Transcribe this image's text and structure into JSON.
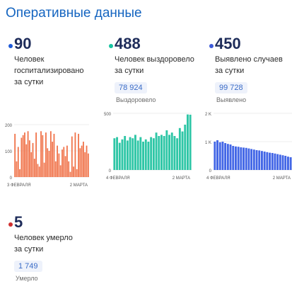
{
  "page_title": "Оперативные данные",
  "cards": [
    {
      "number": "90",
      "desc_lines": [
        "Человек",
        "госпитализировано",
        "за сутки"
      ],
      "dot_color": "#1e5ad8",
      "bar_color": "#f0734a",
      "chart": {
        "type": "bar",
        "x_start_label": "3 ФЕВРАЛЯ",
        "x_end_label": "2 МАРТА",
        "y_ticks": [
          "0",
          "100",
          "200"
        ],
        "ylim": [
          0,
          200
        ],
        "values": [
          165,
          60,
          115,
          30,
          150,
          160,
          170,
          125,
          175,
          140,
          95,
          130,
          70,
          170,
          50,
          40,
          175,
          160,
          55,
          170,
          110,
          100,
          175,
          135,
          165,
          60,
          120,
          90,
          45,
          105,
          115,
          80,
          120,
          60,
          20,
          155,
          40,
          170,
          30,
          165,
          110,
          120,
          135,
          95,
          120,
          90
        ]
      }
    },
    {
      "number": "488",
      "desc_lines": [
        "Человек выздоровело",
        "за сутки"
      ],
      "total": "78 924",
      "total_label": "Выздоровело",
      "dot_color": "#16c3a0",
      "bar_color": "#2ec6a6",
      "chart": {
        "type": "bar",
        "x_start_label": "4 ФЕВРАЛЯ",
        "x_end_label": "2 МАРТА",
        "y_ticks": [
          "0",
          "500"
        ],
        "ylim": [
          0,
          500
        ],
        "values": [
          280,
          290,
          240,
          270,
          300,
          260,
          290,
          280,
          310,
          260,
          290,
          250,
          270,
          250,
          290,
          280,
          330,
          300,
          310,
          300,
          350,
          310,
          330,
          300,
          280,
          370,
          340,
          400,
          490,
          488
        ]
      }
    },
    {
      "number": "450",
      "desc_lines": [
        "Выявлено случаев",
        "за сутки"
      ],
      "total": "99 728",
      "total_label": "Выявлено",
      "dot_color": "#3d5bd9",
      "bar_color": "#4266e6",
      "chart": {
        "type": "bar",
        "x_start_label": "4 ФЕВРАЛЯ",
        "x_end_label": "2 МАРТА",
        "y_ticks": [
          "0",
          "1 K",
          "2 K"
        ],
        "ylim": [
          0,
          2000
        ],
        "values": [
          1000,
          1050,
          980,
          1000,
          950,
          920,
          900,
          850,
          830,
          820,
          800,
          790,
          780,
          760,
          740,
          720,
          700,
          690,
          670,
          650,
          630,
          610,
          600,
          580,
          560,
          540,
          520,
          500,
          470,
          450
        ]
      }
    },
    {
      "number": "5",
      "desc_lines": [
        "Человек умерло",
        "за сутки"
      ],
      "total": "1 749",
      "total_label": "Умерло",
      "dot_color": "#d03030"
    }
  ]
}
